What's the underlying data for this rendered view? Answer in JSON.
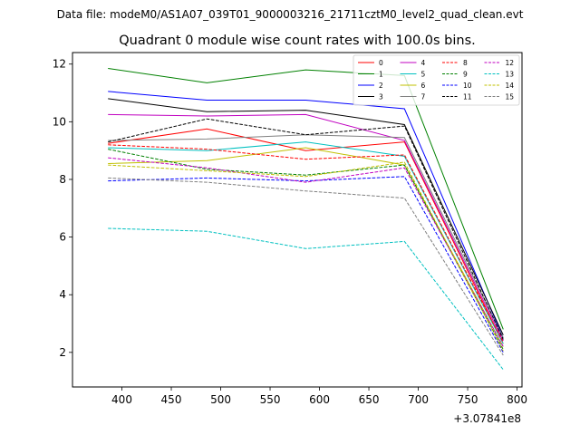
{
  "chart_data": {
    "type": "line",
    "suptitle": "Data file: modeM0/AS1A07_039T01_9000003216_21711cztM0_level2_quad_clean.evt",
    "title": "Quadrant 0 module wise count rates with 100.0s bins.",
    "xlabel": "",
    "ylabel": "",
    "x_offset_label": "+3.07841e8",
    "x": [
      386,
      486,
      586,
      686,
      786
    ],
    "xlim": [
      350,
      805
    ],
    "ylim": [
      0.8,
      12.4
    ],
    "x_ticks": [
      400,
      450,
      500,
      550,
      600,
      650,
      700,
      750,
      800
    ],
    "y_ticks": [
      2,
      4,
      6,
      8,
      10,
      12
    ],
    "grid": false,
    "legend_position": "top-right",
    "series": [
      {
        "name": "0",
        "color": "#ff0000",
        "dash": "solid",
        "values": [
          9.25,
          9.75,
          9.0,
          9.3,
          2.3
        ]
      },
      {
        "name": "1",
        "color": "#008000",
        "dash": "solid",
        "values": [
          11.85,
          11.35,
          11.8,
          11.6,
          2.8
        ]
      },
      {
        "name": "2",
        "color": "#0000ff",
        "dash": "solid",
        "values": [
          11.05,
          10.75,
          10.75,
          10.45,
          2.5
        ]
      },
      {
        "name": "3",
        "color": "#000000",
        "dash": "solid",
        "values": [
          10.8,
          10.35,
          10.4,
          9.9,
          2.6
        ]
      },
      {
        "name": "4",
        "color": "#c000c0",
        "dash": "solid",
        "values": [
          10.25,
          10.2,
          10.25,
          9.35,
          2.4
        ]
      },
      {
        "name": "5",
        "color": "#00c0c0",
        "dash": "solid",
        "values": [
          9.1,
          9.0,
          9.3,
          8.8,
          2.3
        ]
      },
      {
        "name": "6",
        "color": "#c0c000",
        "dash": "solid",
        "values": [
          8.55,
          8.65,
          9.1,
          8.5,
          2.2
        ]
      },
      {
        "name": "7",
        "color": "#808080",
        "dash": "solid",
        "values": [
          9.35,
          9.4,
          9.55,
          9.45,
          2.5
        ]
      },
      {
        "name": "8",
        "color": "#ff0000",
        "dash": "dashed",
        "values": [
          9.2,
          9.05,
          8.7,
          8.85,
          2.35
        ]
      },
      {
        "name": "9",
        "color": "#008000",
        "dash": "dashed",
        "values": [
          9.05,
          8.35,
          8.15,
          8.5,
          2.1
        ]
      },
      {
        "name": "10",
        "color": "#0000ff",
        "dash": "dashed",
        "values": [
          7.95,
          8.05,
          7.95,
          8.1,
          2.0
        ]
      },
      {
        "name": "11",
        "color": "#000000",
        "dash": "dashed",
        "values": [
          9.3,
          10.1,
          9.55,
          9.85,
          2.45
        ]
      },
      {
        "name": "12",
        "color": "#c000c0",
        "dash": "dashed",
        "values": [
          8.75,
          8.4,
          7.9,
          8.4,
          2.2
        ]
      },
      {
        "name": "13",
        "color": "#00c0c0",
        "dash": "dashed",
        "values": [
          6.3,
          6.2,
          5.6,
          5.85,
          1.4
        ]
      },
      {
        "name": "14",
        "color": "#c0c000",
        "dash": "dashed",
        "values": [
          8.5,
          8.3,
          8.1,
          8.6,
          2.05
        ]
      },
      {
        "name": "15",
        "color": "#808080",
        "dash": "dashed",
        "values": [
          8.05,
          7.9,
          7.6,
          7.35,
          1.9
        ]
      }
    ]
  }
}
